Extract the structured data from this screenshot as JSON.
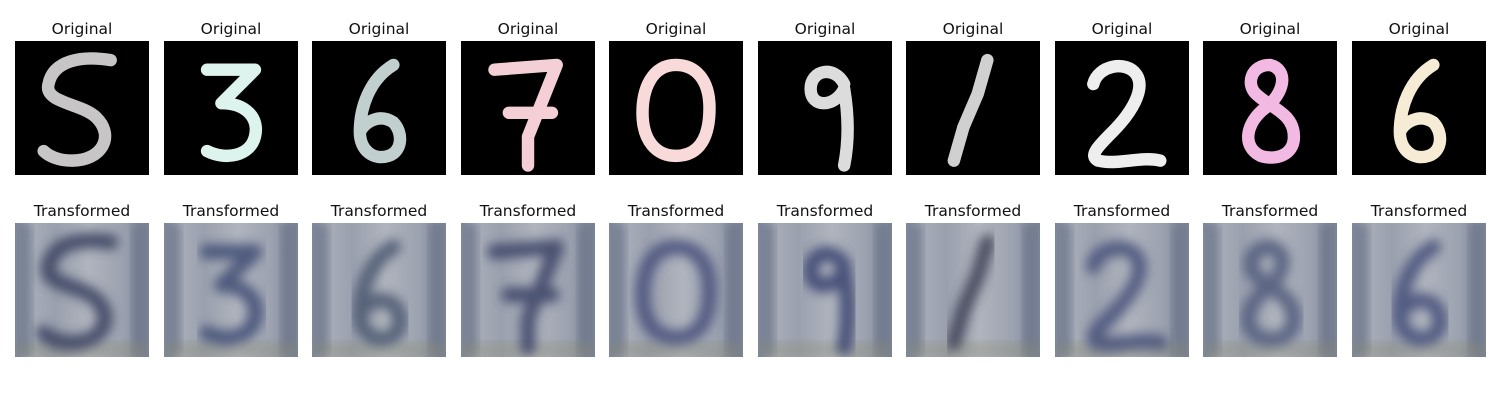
{
  "rows": [
    {
      "label": "Original",
      "kind": "original",
      "tiles": [
        {
          "digit": "5",
          "color": "#c7c5c6"
        },
        {
          "digit": "3",
          "color": "#ddf3ee"
        },
        {
          "digit": "6",
          "color": "#c1cfce"
        },
        {
          "digit": "7",
          "color": "#f4cfd6"
        },
        {
          "digit": "0",
          "color": "#f9dada"
        },
        {
          "digit": "9",
          "color": "#dcdcdc"
        },
        {
          "digit": "1",
          "color": "#d0d0d0"
        },
        {
          "digit": "2",
          "color": "#eeeeee"
        },
        {
          "digit": "8",
          "color": "#f2b9e2"
        },
        {
          "digit": "6",
          "color": "#f6ecd6"
        }
      ]
    },
    {
      "label": "Transformed",
      "kind": "transformed",
      "tiles": [
        {
          "digit": "5",
          "color": "#39405e"
        },
        {
          "digit": "3",
          "color": "#414d75"
        },
        {
          "digit": "6",
          "color": "#4a5670"
        },
        {
          "digit": "7",
          "color": "#3b4266"
        },
        {
          "digit": "0",
          "color": "#46507a"
        },
        {
          "digit": "9",
          "color": "#374370"
        },
        {
          "digit": "1",
          "color": "#3c3f55"
        },
        {
          "digit": "2",
          "color": "#46517a"
        },
        {
          "digit": "8",
          "color": "#4f5a7c"
        },
        {
          "digit": "6",
          "color": "#44507a"
        }
      ]
    }
  ]
}
